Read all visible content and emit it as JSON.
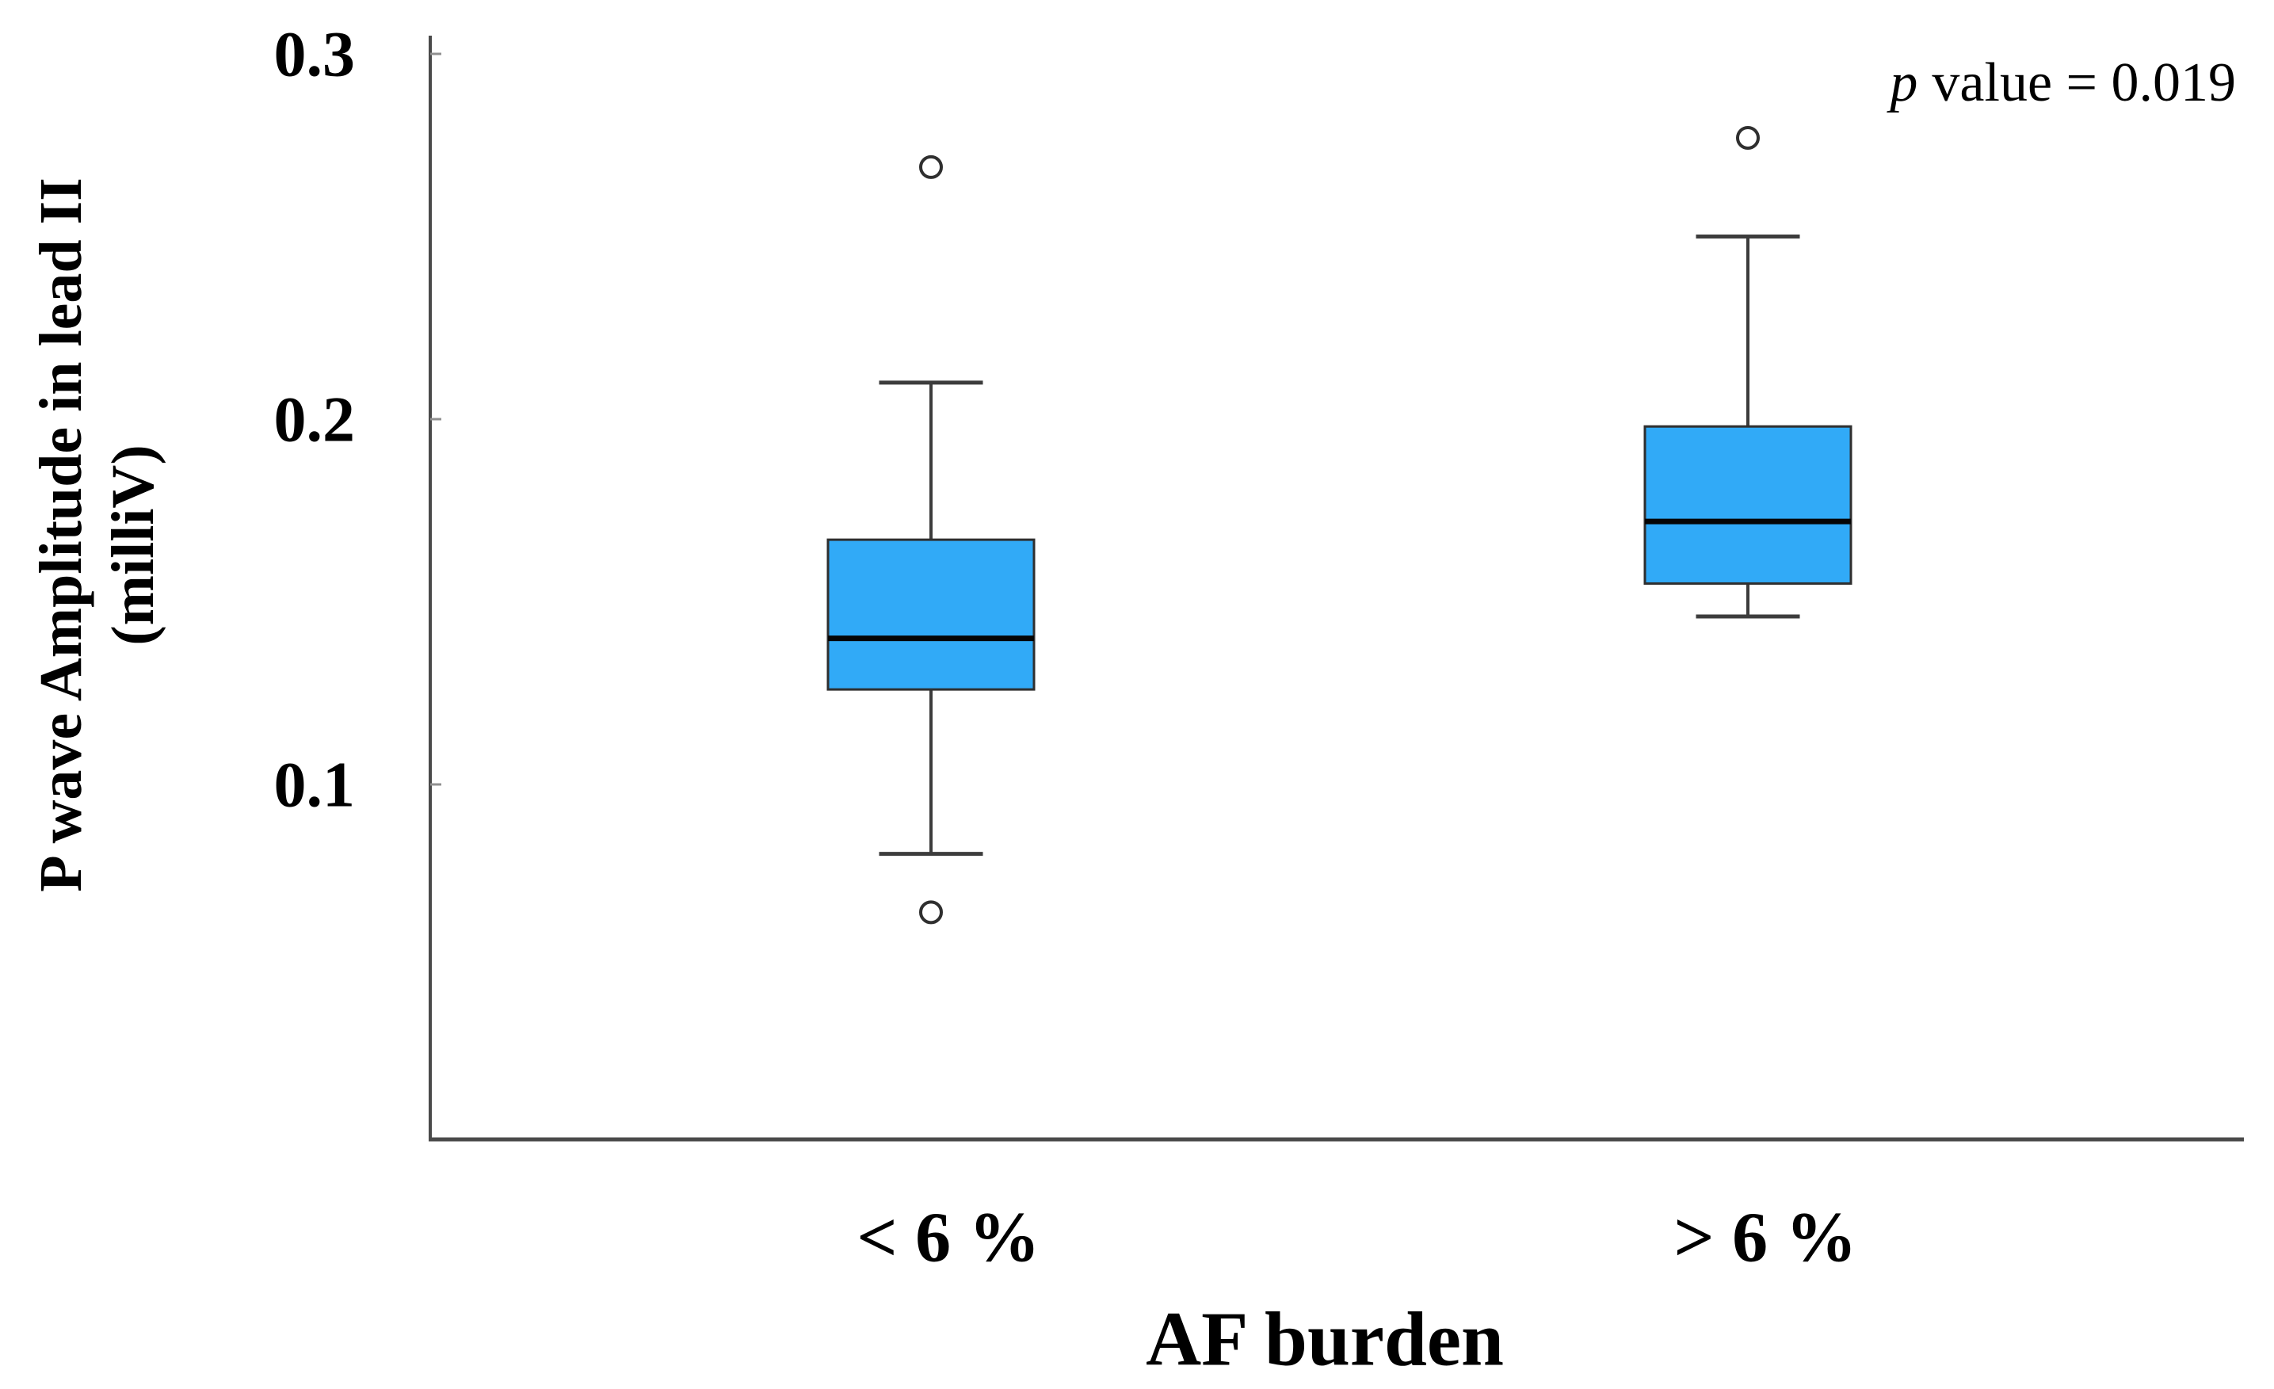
{
  "figure": {
    "annotation": {
      "p_symbol": "p",
      "rest": "value = 0.019"
    },
    "y_axis": {
      "label_line1": "P wave Amplitude in lead II",
      "label_line2": "(milliV)",
      "tick_labels": [
        "0.3",
        "0.2",
        "0.1"
      ]
    },
    "x_axis": {
      "title": "AF burden",
      "category_labels": [
        "< 6 %",
        "> 6 %"
      ]
    }
  },
  "chart_data": {
    "type": "boxplot",
    "title": "",
    "xlabel": "AF burden",
    "ylabel": "P wave Amplitude in lead II (milliV)",
    "categories": [
      "< 6 %",
      "> 6 %"
    ],
    "yticks": [
      0.3,
      0.2,
      0.1
    ],
    "ylim": [
      0,
      0.305
    ],
    "grid": false,
    "legend": false,
    "annotation": "p value = 0.019",
    "series": [
      {
        "category": "< 6 %",
        "whisker_low": 0.081,
        "q1": 0.126,
        "median": 0.14,
        "q3": 0.167,
        "whisker_high": 0.21,
        "outliers": [
          0.269,
          0.065
        ]
      },
      {
        "category": "> 6 %",
        "whisker_low": 0.146,
        "q1": 0.155,
        "median": 0.172,
        "q3": 0.198,
        "whisker_high": 0.25,
        "outliers": [
          0.277
        ]
      }
    ],
    "colors": {
      "box_fill": "#31AAF7",
      "box_border": "#2F2F2F",
      "median": "#050505",
      "whisker": "#3C3C3C",
      "axis": "#4A4A4A",
      "minor_tick": "#909090",
      "outlier_stroke": "#2F2F2F",
      "text": "#000000",
      "background": "#FFFFFF"
    }
  }
}
